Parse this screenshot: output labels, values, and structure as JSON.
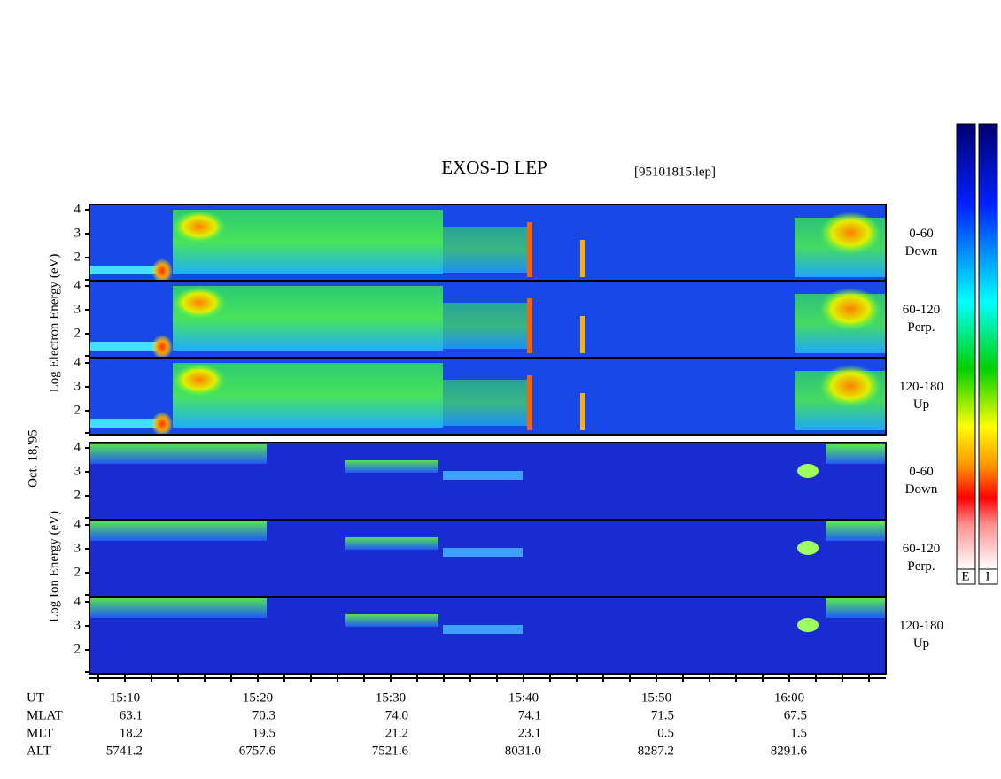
{
  "header": {
    "title": "EXOS-D LEP",
    "file": "[95101815.lep]"
  },
  "date": "Oct. 18,'95",
  "electron_axis": "Log  Electron  Energy (eV)",
  "ion_axis": "Log  Ion  Energy (eV)",
  "panels": [
    {
      "pitch": "0-60",
      "direction": "Down",
      "yticks": [
        2,
        3,
        4
      ]
    },
    {
      "pitch": "60-120",
      "direction": "Perp.",
      "yticks": [
        2,
        3,
        4
      ]
    },
    {
      "pitch": "120-180",
      "direction": "Up",
      "yticks": [
        2,
        3,
        4
      ]
    },
    {
      "pitch": "0-60",
      "direction": "Down",
      "yticks": [
        2,
        3,
        4
      ]
    },
    {
      "pitch": "60-120",
      "direction": "Perp.",
      "yticks": [
        2,
        3,
        4
      ]
    },
    {
      "pitch": "120-180",
      "direction": "Up",
      "yticks": [
        2,
        3,
        4
      ]
    }
  ],
  "ephemeris": {
    "labels": [
      "UT",
      "MLAT",
      "MLT",
      "ALT"
    ],
    "rows": [
      [
        "15:10",
        "15:20",
        "15:30",
        "15:40",
        "15:50",
        "16:00"
      ],
      [
        "63.1",
        "70.3",
        "74.0",
        "74.1",
        "71.5",
        "67.5"
      ],
      [
        "18.2",
        "19.5",
        "21.2",
        "23.1",
        "0.5",
        "1.5"
      ],
      [
        "5741.2",
        "6757.6",
        "7521.6",
        "8031.0",
        "8287.2",
        "8291.6"
      ]
    ]
  },
  "colorbar_labels": [
    "E",
    "I"
  ]
}
